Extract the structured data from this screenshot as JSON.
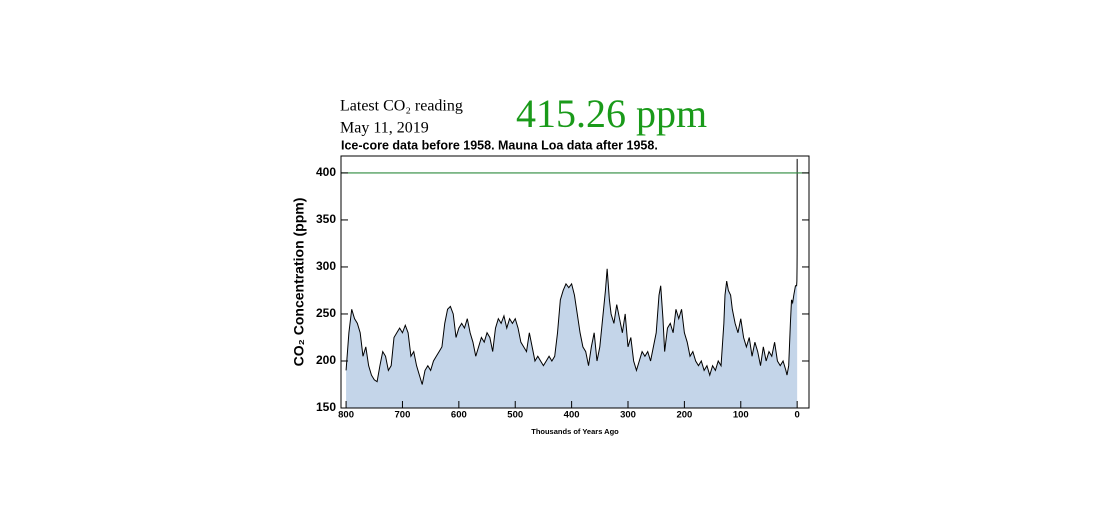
{
  "chart_data": {
    "type": "area",
    "reading_label": "Latest CO₂ reading",
    "reading_date": "May 11, 2019",
    "latest_reading": "415.26 ppm",
    "subtitle": "Ice-core data before 1958. Mauna Loa data after 1958.",
    "y_label": "CO₂ Concentration (ppm)",
    "x_label": "Thousands of Years Ago",
    "line_color": "#000000",
    "fill_color": "#c4d5e9",
    "reference_line": {
      "value": 400,
      "color": "#2e8b3e"
    },
    "xlim": [
      809,
      -21
    ],
    "ylim": [
      150,
      418
    ],
    "xticks": [
      800,
      700,
      600,
      500,
      400,
      300,
      200,
      100,
      0
    ],
    "yticks": [
      150,
      200,
      250,
      300,
      350,
      400
    ],
    "x": [
      800,
      795,
      790,
      785,
      780,
      775,
      770,
      765,
      760,
      755,
      750,
      745,
      740,
      735,
      730,
      725,
      720,
      715,
      710,
      705,
      700,
      695,
      690,
      685,
      680,
      675,
      670,
      665,
      660,
      655,
      650,
      645,
      640,
      635,
      630,
      625,
      620,
      615,
      610,
      605,
      600,
      595,
      590,
      585,
      580,
      575,
      570,
      565,
      560,
      555,
      550,
      545,
      540,
      535,
      530,
      525,
      520,
      515,
      510,
      505,
      500,
      495,
      490,
      485,
      480,
      475,
      470,
      465,
      460,
      455,
      450,
      445,
      440,
      435,
      430,
      425,
      420,
      415,
      410,
      405,
      400,
      395,
      390,
      385,
      380,
      375,
      370,
      365,
      360,
      355,
      350,
      345,
      340,
      337,
      333,
      330,
      325,
      320,
      315,
      310,
      305,
      300,
      295,
      290,
      285,
      280,
      275,
      270,
      265,
      260,
      255,
      250,
      245,
      242,
      238,
      235,
      230,
      225,
      220,
      215,
      210,
      205,
      200,
      195,
      190,
      185,
      180,
      175,
      170,
      165,
      160,
      155,
      150,
      145,
      140,
      135,
      130,
      128,
      125,
      122,
      118,
      115,
      110,
      105,
      100,
      95,
      90,
      85,
      80,
      75,
      70,
      65,
      60,
      55,
      50,
      45,
      40,
      35,
      30,
      25,
      20,
      18,
      15,
      12,
      10,
      8,
      6,
      3,
      1,
      0.5,
      0.2,
      0.06,
      0
    ],
    "values": [
      190,
      230,
      255,
      245,
      240,
      230,
      205,
      215,
      195,
      185,
      180,
      178,
      195,
      210,
      205,
      190,
      195,
      225,
      230,
      235,
      230,
      238,
      230,
      205,
      210,
      195,
      185,
      175,
      190,
      195,
      190,
      200,
      205,
      210,
      215,
      240,
      255,
      258,
      250,
      225,
      235,
      240,
      235,
      245,
      230,
      220,
      205,
      215,
      225,
      220,
      230,
      225,
      210,
      235,
      245,
      240,
      248,
      235,
      245,
      240,
      245,
      235,
      220,
      215,
      210,
      230,
      215,
      200,
      205,
      200,
      195,
      200,
      205,
      200,
      205,
      230,
      265,
      275,
      282,
      278,
      282,
      270,
      250,
      230,
      215,
      210,
      195,
      215,
      230,
      200,
      215,
      245,
      275,
      298,
      265,
      250,
      240,
      260,
      245,
      230,
      250,
      215,
      225,
      200,
      190,
      200,
      210,
      205,
      210,
      200,
      215,
      230,
      270,
      280,
      245,
      210,
      235,
      240,
      230,
      255,
      245,
      255,
      230,
      220,
      205,
      210,
      200,
      195,
      200,
      190,
      195,
      185,
      195,
      190,
      200,
      195,
      240,
      270,
      285,
      275,
      270,
      255,
      240,
      230,
      245,
      225,
      215,
      225,
      205,
      220,
      210,
      195,
      215,
      200,
      210,
      205,
      220,
      200,
      195,
      200,
      190,
      185,
      195,
      240,
      265,
      262,
      270,
      280,
      280,
      285,
      300,
      315,
      415
    ]
  }
}
